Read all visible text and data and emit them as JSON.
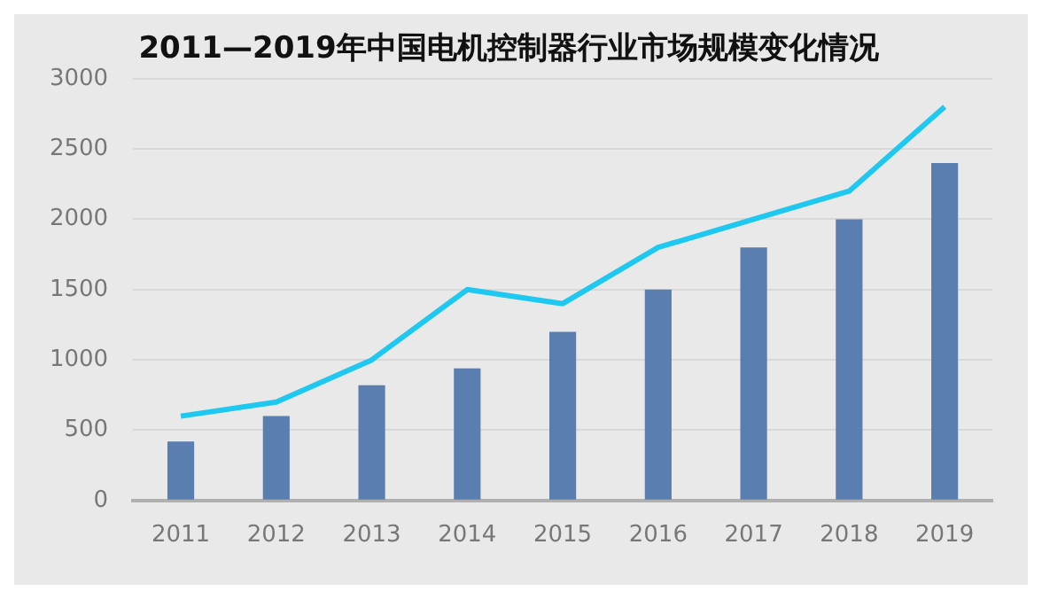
{
  "chart_data": {
    "type": "bar",
    "title": "2011—2019年中国电机控制器行业市场规模变化情况",
    "categories": [
      "2011",
      "2012",
      "2013",
      "2014",
      "2015",
      "2016",
      "2017",
      "2018",
      "2019"
    ],
    "series": [
      {
        "color": "#5a7eb0",
        "values": [
          420,
          600,
          820,
          940,
          1200,
          1500,
          1800,
          2000,
          2400
        ]
      },
      {
        "type": "line",
        "color": "#1ec8f0",
        "values": [
          600,
          700,
          1000,
          1500,
          1400,
          1800,
          2000,
          2200,
          2800
        ]
      }
    ],
    "ylim": [
      0,
      3000
    ],
    "yticks": [
      0,
      500,
      1000,
      1500,
      2000,
      2500,
      3000
    ],
    "grid": "y",
    "legend": false,
    "marker": "none"
  }
}
